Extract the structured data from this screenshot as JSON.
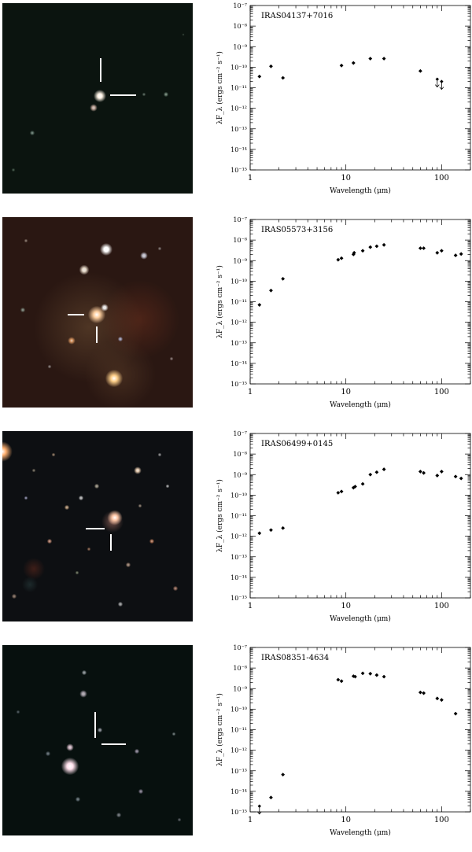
{
  "figure": {
    "rows": [
      {
        "panel_label": "IRAS04137+7016",
        "image": {
          "background": "#0b140f",
          "marker_color": "#ffffff"
        }
      },
      {
        "panel_label": "IRAS05573+3156",
        "image": {
          "background": "#2a1712",
          "marker_color": "#ffffff"
        }
      },
      {
        "panel_label": "IRAS06499+0145",
        "image": {
          "background": "#0d0f12",
          "marker_color": "#ffffff"
        }
      },
      {
        "panel_label": "IRAS08351-4634",
        "image": {
          "background": "#07100e",
          "marker_color": "#ffffff"
        }
      }
    ]
  },
  "chart_data": [
    {
      "type": "scatter",
      "title": "IRAS04137+7016",
      "xlabel": "Wavelength (μm)",
      "ylabel": "λF_λ (ergs cm⁻² s⁻¹)",
      "xscale": "log",
      "yscale": "log",
      "xlim": [
        1,
        200
      ],
      "ylim": [
        1e-15,
        1e-07
      ],
      "x_ticks": [
        "1",
        "10",
        "100"
      ],
      "y_ticks": [
        "10⁻¹⁵",
        "10⁻¹⁴",
        "10⁻¹³",
        "10⁻¹²",
        "10⁻¹¹",
        "10⁻¹⁰",
        "10⁻⁹",
        "10⁻⁸",
        "10⁻⁷"
      ],
      "points": [
        [
          1.25,
          3.5e-11
        ],
        [
          1.65,
          1.1e-10
        ],
        [
          2.2,
          3e-11
        ],
        [
          9,
          1.2e-10
        ],
        [
          12,
          1.6e-10
        ],
        [
          18,
          2.6e-10
        ],
        [
          25,
          2.6e-10
        ],
        [
          60,
          6.5e-11
        ]
      ],
      "upper_limits": [
        [
          90,
          2.6e-11
        ],
        [
          100,
          2e-11
        ]
      ]
    },
    {
      "type": "scatter",
      "title": "IRAS05573+3156",
      "xlabel": "Wavelength (μm)",
      "ylabel": "λF_λ (ergs cm⁻² s⁻¹)",
      "xscale": "log",
      "yscale": "log",
      "xlim": [
        1,
        200
      ],
      "ylim": [
        1e-15,
        1e-07
      ],
      "x_ticks": [
        "1",
        "10",
        "100"
      ],
      "y_ticks": [
        "10⁻¹⁵",
        "10⁻¹⁴",
        "10⁻¹³",
        "10⁻¹²",
        "10⁻¹¹",
        "10⁻¹⁰",
        "10⁻⁹",
        "10⁻⁸",
        "10⁻⁷"
      ],
      "points": [
        [
          1.25,
          7e-12
        ],
        [
          1.65,
          3.5e-11
        ],
        [
          2.2,
          1.3e-10
        ],
        [
          8.3,
          1.1e-09
        ],
        [
          9,
          1.3e-09
        ],
        [
          12,
          2e-09
        ],
        [
          12.2,
          2.4e-09
        ],
        [
          15,
          3e-09
        ],
        [
          18,
          4.5e-09
        ],
        [
          21,
          5e-09
        ],
        [
          25,
          5.8e-09
        ],
        [
          60,
          4e-09
        ],
        [
          65,
          4e-09
        ],
        [
          90,
          2.4e-09
        ],
        [
          100,
          3e-09
        ],
        [
          140,
          1.8e-09
        ],
        [
          160,
          2.1e-09
        ]
      ],
      "upper_limits": []
    },
    {
      "type": "scatter",
      "title": "IRAS06499+0145",
      "xlabel": "Wavelength (μm)",
      "ylabel": "λF_λ (ergs cm⁻² s⁻¹)",
      "xscale": "log",
      "yscale": "log",
      "xlim": [
        1,
        200
      ],
      "ylim": [
        1e-15,
        1e-07
      ],
      "x_ticks": [
        "1",
        "10",
        "100"
      ],
      "y_ticks": [
        "10⁻¹⁵",
        "10⁻¹⁴",
        "10⁻¹³",
        "10⁻¹²",
        "10⁻¹¹",
        "10⁻¹⁰",
        "10⁻⁹",
        "10⁻⁸",
        "10⁻⁷"
      ],
      "points": [
        [
          1.25,
          1.4e-12
        ],
        [
          1.65,
          2e-12
        ],
        [
          2.2,
          2.5e-12
        ],
        [
          8.3,
          1.3e-10
        ],
        [
          9,
          1.5e-10
        ],
        [
          12,
          2.3e-10
        ],
        [
          12.5,
          2.6e-10
        ],
        [
          15,
          3.5e-10
        ],
        [
          18,
          1e-09
        ],
        [
          21,
          1.3e-09
        ],
        [
          25,
          1.8e-09
        ],
        [
          60,
          1.4e-09
        ],
        [
          65,
          1.2e-09
        ],
        [
          90,
          9e-10
        ],
        [
          100,
          1.4e-09
        ],
        [
          140,
          8e-10
        ],
        [
          160,
          6.5e-10
        ]
      ],
      "upper_limits": []
    },
    {
      "type": "scatter",
      "title": "IRAS08351-4634",
      "xlabel": "Wavelength (μm)",
      "ylabel": "λF_λ (ergs cm⁻² s⁻¹)",
      "xscale": "log",
      "yscale": "log",
      "xlim": [
        1,
        200
      ],
      "ylim": [
        1e-15,
        1e-07
      ],
      "x_ticks": [
        "1",
        "10",
        "100"
      ],
      "y_ticks": [
        "10⁻¹⁵",
        "10⁻¹⁴",
        "10⁻¹³",
        "10⁻¹²",
        "10⁻¹¹",
        "10⁻¹⁰",
        "10⁻⁹",
        "10⁻⁸",
        "10⁻⁷"
      ],
      "points": [
        [
          1.65,
          5e-15
        ],
        [
          2.2,
          6.5e-14
        ],
        [
          8.3,
          2.7e-09
        ],
        [
          9,
          2.3e-09
        ],
        [
          12,
          4e-09
        ],
        [
          12.5,
          3.8e-09
        ],
        [
          15,
          5.5e-09
        ],
        [
          18,
          5.3e-09
        ],
        [
          21,
          4.5e-09
        ],
        [
          25,
          3.8e-09
        ],
        [
          60,
          6.5e-10
        ],
        [
          65,
          6e-10
        ],
        [
          90,
          3.3e-10
        ],
        [
          100,
          2.8e-10
        ],
        [
          140,
          6e-11
        ]
      ],
      "upper_limits": [
        [
          1.25,
          1.9e-15
        ]
      ]
    }
  ]
}
